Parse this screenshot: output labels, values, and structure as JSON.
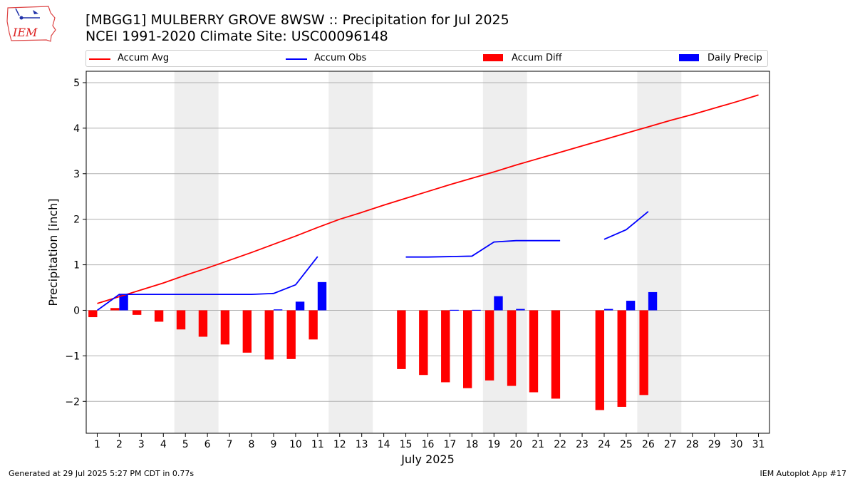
{
  "header": {
    "title_line1": "[MBGG1] MULBERRY GROVE 8WSW :: Precipitation for Jul 2025",
    "title_line2": "NCEI 1991-2020 Climate Site: USC00096148",
    "logo_text": "IEM"
  },
  "legend": {
    "placement": "top",
    "items": [
      {
        "label": "Accum Avg",
        "kind": "line",
        "color": "#ff0000"
      },
      {
        "label": "Accum Obs",
        "kind": "line",
        "color": "#0000ff"
      },
      {
        "label": "Accum Diff",
        "kind": "bar",
        "color": "#ff0000"
      },
      {
        "label": "Daily Precip",
        "kind": "bar",
        "color": "#0000ff"
      }
    ]
  },
  "footer": {
    "left": "Generated at 29 Jul 2025 5:27 PM CDT in 0.77s",
    "right": "IEM Autoplot App #17"
  },
  "chart_data": {
    "type": "bar",
    "title": "[MBGG1] MULBERRY GROVE 8WSW :: Precipitation for Jul 2025",
    "subtitle": "NCEI 1991-2020 Climate Site: USC00096148",
    "xlabel": "July 2025",
    "ylabel": "Precipitation [inch]",
    "xlim": [
      0.5,
      31.5
    ],
    "ylim": [
      -2.7,
      5.25
    ],
    "yticks": [
      -2,
      -1,
      0,
      1,
      2,
      3,
      4,
      5
    ],
    "grid": "horizontal",
    "weekend_shading": [
      [
        4.5,
        6.5
      ],
      [
        11.5,
        13.5
      ],
      [
        18.5,
        20.5
      ],
      [
        25.5,
        27.5
      ]
    ],
    "categories": [
      "1",
      "2",
      "3",
      "4",
      "5",
      "6",
      "7",
      "8",
      "9",
      "10",
      "11",
      "12",
      "13",
      "14",
      "15",
      "16",
      "17",
      "18",
      "19",
      "20",
      "21",
      "22",
      "23",
      "24",
      "25",
      "26",
      "27",
      "28",
      "29",
      "30",
      "31"
    ],
    "series": [
      {
        "name": "Accum Avg",
        "type": "line",
        "color": "#ff0000",
        "x": [
          1,
          2,
          3,
          4,
          5,
          6,
          7,
          8,
          9,
          10,
          11,
          12,
          13,
          14,
          15,
          16,
          17,
          18,
          19,
          20,
          21,
          22,
          23,
          24,
          25,
          26,
          27,
          28,
          29,
          30,
          31
        ],
        "values": [
          0.15,
          0.3,
          0.45,
          0.6,
          0.77,
          0.93,
          1.1,
          1.27,
          1.45,
          1.63,
          1.82,
          2.0,
          2.15,
          2.31,
          2.46,
          2.61,
          2.76,
          2.9,
          3.04,
          3.19,
          3.33,
          3.47,
          3.61,
          3.75,
          3.89,
          4.03,
          4.17,
          4.3,
          4.44,
          4.58,
          4.73
        ]
      },
      {
        "name": "Accum Obs",
        "type": "line",
        "color": "#0000ff",
        "segments": [
          {
            "x": [
              1,
              2,
              3,
              4,
              5,
              6,
              7,
              8,
              9,
              10,
              11
            ],
            "values": [
              0.0,
              0.35,
              0.35,
              0.35,
              0.35,
              0.35,
              0.35,
              0.35,
              0.37,
              0.56,
              1.18
            ]
          },
          {
            "x": [
              15,
              16,
              17,
              18,
              19,
              20,
              21,
              22
            ],
            "values": [
              1.17,
              1.17,
              1.18,
              1.19,
              1.5,
              1.53,
              1.53,
              1.53
            ]
          },
          {
            "x": [
              24,
              25,
              26
            ],
            "values": [
              1.56,
              1.77,
              2.17
            ]
          }
        ]
      },
      {
        "name": "Accum Diff",
        "type": "bar",
        "color": "#ff0000",
        "x": [
          1,
          2,
          3,
          4,
          5,
          6,
          7,
          8,
          9,
          10,
          11,
          15,
          16,
          17,
          18,
          19,
          20,
          21,
          22,
          24,
          25,
          26
        ],
        "values": [
          -0.15,
          0.05,
          -0.1,
          -0.25,
          -0.42,
          -0.58,
          -0.75,
          -0.93,
          -1.08,
          -1.07,
          -0.64,
          -1.29,
          -1.42,
          -1.58,
          -1.71,
          -1.54,
          -1.66,
          -1.8,
          -1.94,
          -2.19,
          -2.12,
          -1.86
        ]
      },
      {
        "name": "Daily Precip",
        "type": "bar",
        "color": "#0000ff",
        "x": [
          2,
          9,
          10,
          11,
          17,
          18,
          19,
          20,
          24,
          25,
          26
        ],
        "values": [
          0.35,
          0.02,
          0.19,
          0.62,
          0.01,
          0.01,
          0.31,
          0.03,
          0.03,
          0.21,
          0.4
        ]
      }
    ]
  }
}
